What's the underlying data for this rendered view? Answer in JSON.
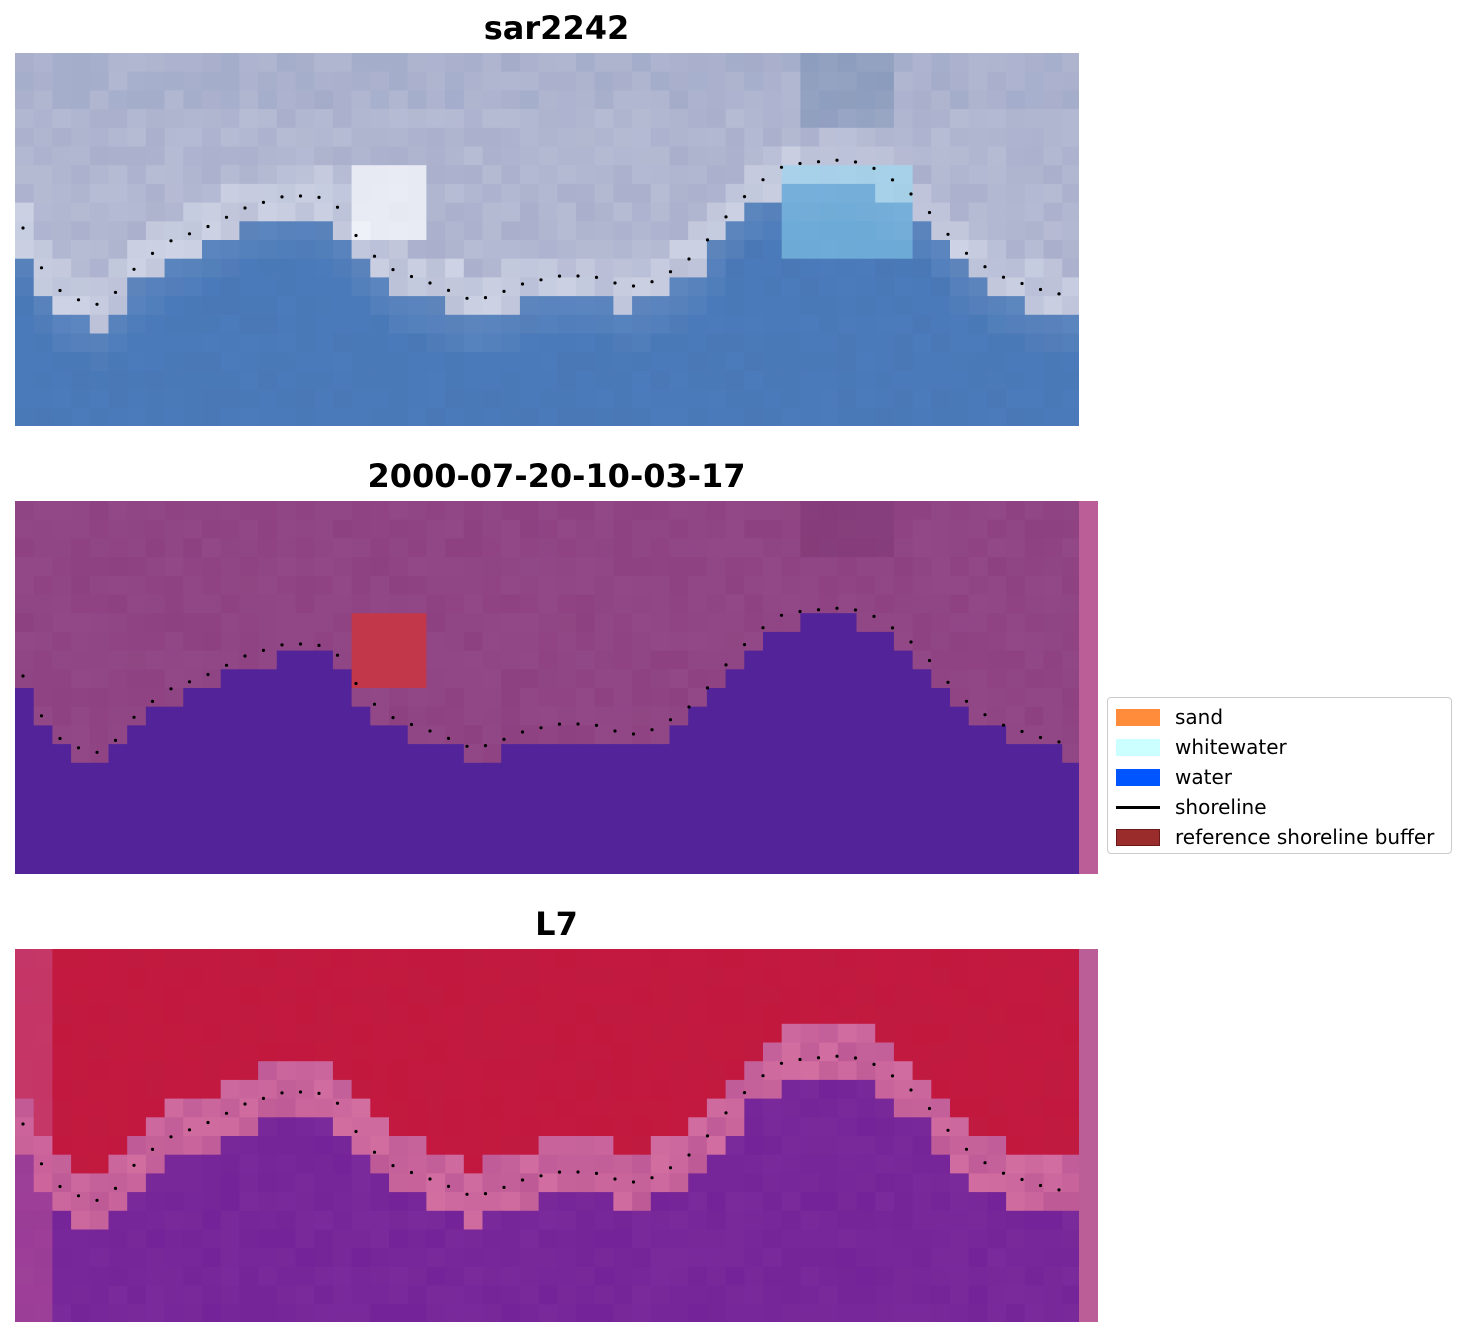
{
  "panels": [
    {
      "id": "rgb",
      "title": "sar2242"
    },
    {
      "id": "classified",
      "title": "2000-07-20-10-03-17"
    },
    {
      "id": "mndwi",
      "title": "L7"
    }
  ],
  "legend": {
    "items": [
      {
        "label": "sand",
        "color": "#ff8c3a",
        "kind": "patch"
      },
      {
        "label": "whitewater",
        "color": "#ccffff",
        "kind": "patch"
      },
      {
        "label": "water",
        "color": "#0055ff",
        "kind": "patch"
      },
      {
        "label": "shoreline",
        "color": "#000000",
        "kind": "line"
      },
      {
        "label": "reference shoreline buffer",
        "color": "#9b2c2c",
        "kind": "patch"
      }
    ]
  },
  "colors": {
    "sand_classified": "#8e4181",
    "water_classified": "#522399",
    "buffer_classified": "#c2374a",
    "mndwi_land": "#c01a40",
    "mndwi_water": "#7a2a9a",
    "rgb_land": "#aab0cc",
    "rgb_water": "#4a78b6",
    "side_strip": "#bb5e98"
  }
}
